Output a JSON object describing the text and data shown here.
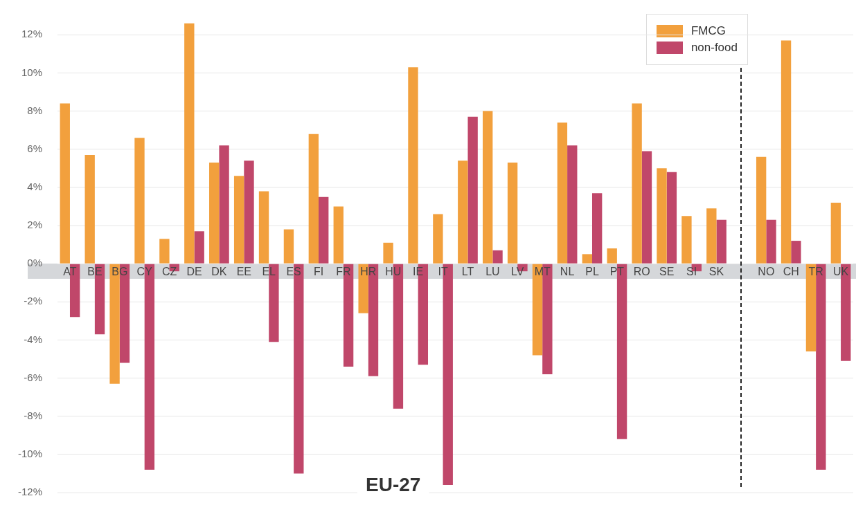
{
  "chart_data": {
    "type": "bar",
    "categories": [
      "AT",
      "BE",
      "BG",
      "CY",
      "CZ",
      "DE",
      "DK",
      "EE",
      "EL",
      "ES",
      "FI",
      "FR",
      "HR",
      "HU",
      "IE",
      "IT",
      "LT",
      "LU",
      "LV",
      "MT",
      "NL",
      "PL",
      "PT",
      "RO",
      "SE",
      "SI",
      "SK",
      null,
      "NO",
      "CH",
      "TR",
      "UK"
    ],
    "series": [
      {
        "name": "FMCG",
        "color": "#f2a03d",
        "values": [
          8.4,
          5.7,
          -6.3,
          6.6,
          1.3,
          12.6,
          5.3,
          4.6,
          3.8,
          1.8,
          6.8,
          3.0,
          -2.6,
          1.1,
          10.3,
          2.6,
          5.4,
          8.0,
          5.3,
          -4.8,
          7.4,
          0.5,
          0.8,
          8.4,
          5.0,
          2.5,
          2.9,
          null,
          5.6,
          11.7,
          -4.6,
          3.2
        ]
      },
      {
        "name": "non-food",
        "color": "#c0476a",
        "values": [
          -2.8,
          -3.7,
          -5.2,
          -10.8,
          -0.4,
          1.7,
          6.2,
          5.4,
          -4.1,
          -11.0,
          3.5,
          -5.4,
          -5.9,
          -7.6,
          -5.3,
          -11.6,
          7.7,
          0.7,
          -0.4,
          -5.8,
          6.2,
          3.7,
          -9.2,
          5.9,
          4.8,
          -0.4,
          2.3,
          null,
          2.3,
          1.2,
          -10.8,
          -5.1
        ]
      }
    ],
    "ylim": [
      -12,
      12.7
    ],
    "yticks": [
      {
        "value": -12,
        "label": "-12%"
      },
      {
        "value": -10,
        "label": "-10%"
      },
      {
        "value": -8,
        "label": "-8%"
      },
      {
        "value": -6,
        "label": "-6%"
      },
      {
        "value": -4,
        "label": "-4%"
      },
      {
        "value": -2,
        "label": "-2%"
      },
      {
        "value": 0,
        "label": "0%"
      },
      {
        "value": 2,
        "label": "2%"
      },
      {
        "value": 4,
        "label": "4%"
      },
      {
        "value": 6,
        "label": "6%"
      },
      {
        "value": 8,
        "label": "8%"
      },
      {
        "value": 10,
        "label": "10%"
      },
      {
        "value": 12,
        "label": "12%"
      }
    ],
    "grid": "y",
    "legend": "top right",
    "annotations": [
      "EU-27"
    ]
  }
}
